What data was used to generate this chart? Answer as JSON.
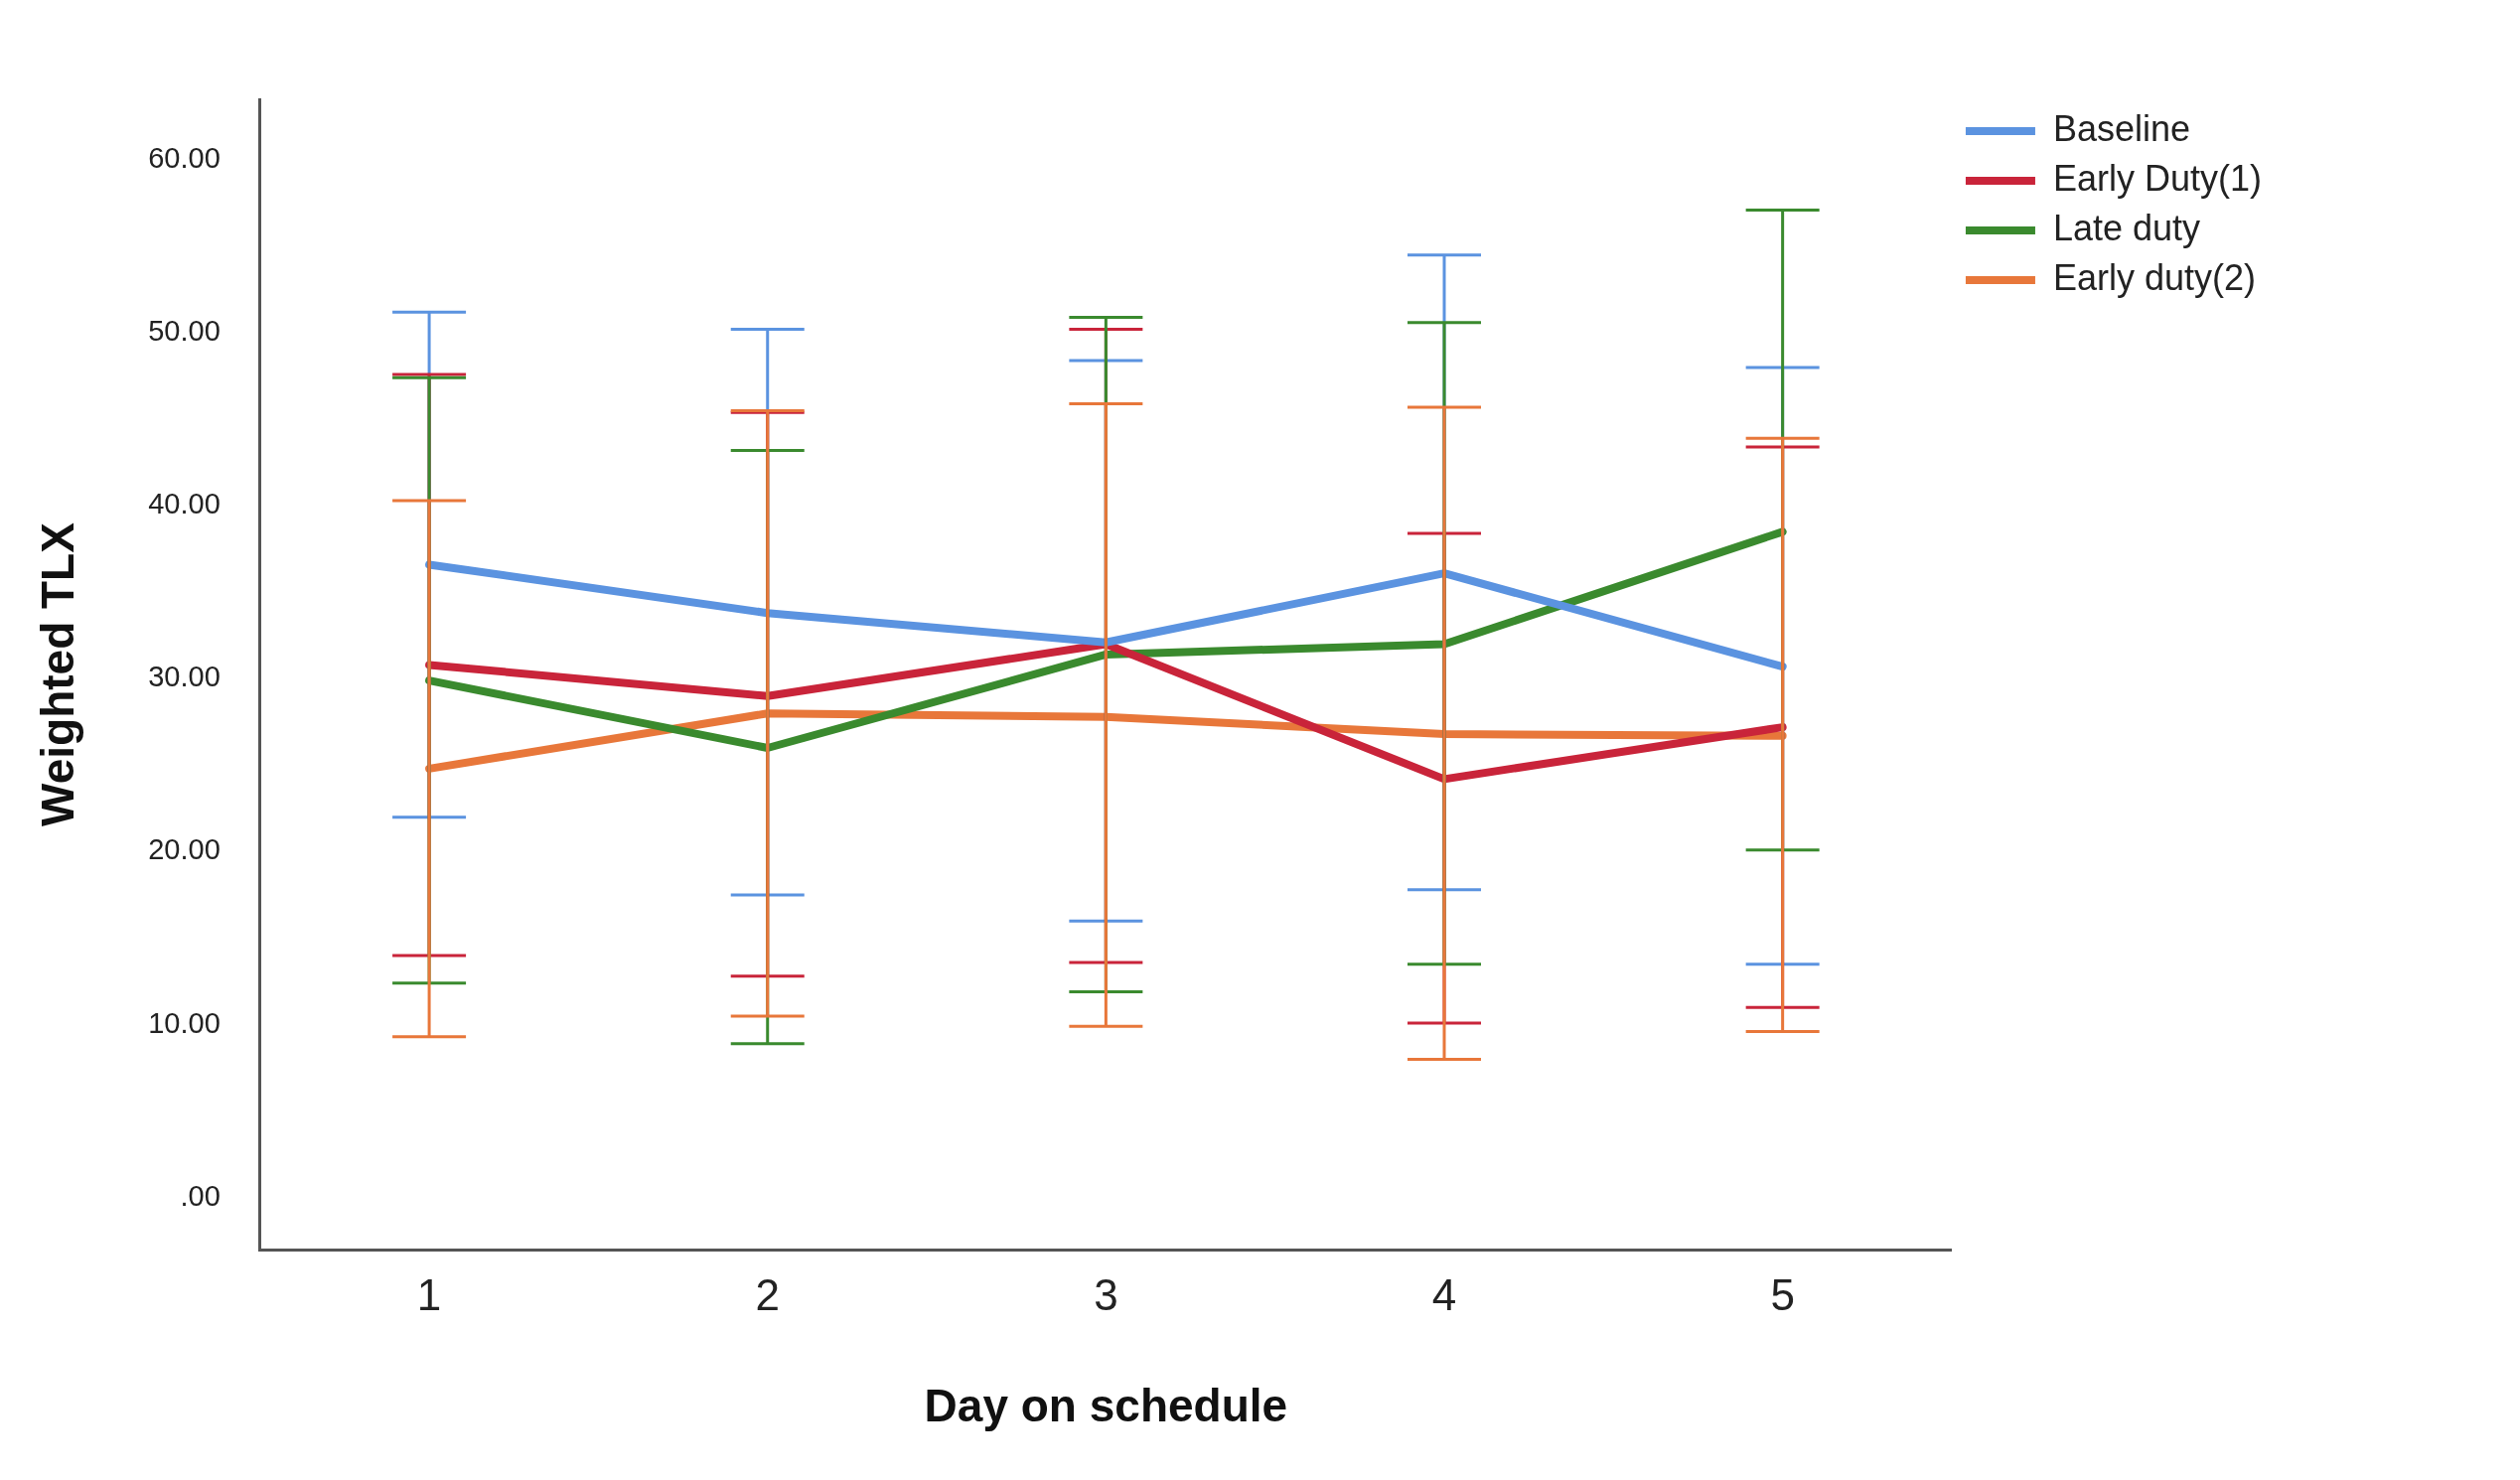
{
  "chart_data": {
    "type": "line",
    "xlabel": "Day on schedule",
    "ylabel": "Weighted TLX",
    "categories": [
      "1",
      "2",
      "3",
      "4",
      "5"
    ],
    "ylim": [
      -3,
      63.5
    ],
    "yticks": [
      {
        "value": 0,
        "label": ".00"
      },
      {
        "value": 10,
        "label": "10.00"
      },
      {
        "value": 20,
        "label": "20.00"
      },
      {
        "value": 30,
        "label": "30.00"
      },
      {
        "value": 40,
        "label": "40.00"
      },
      {
        "value": 50,
        "label": "50.00"
      },
      {
        "value": 60,
        "label": "60.00"
      }
    ],
    "grid": false,
    "legend": "top right",
    "marker": "none",
    "line_style": "solid",
    "series": [
      {
        "name": "Baseline",
        "color": "#5b93e0",
        "values": [
          36.6,
          33.8,
          32.1,
          36.1,
          30.7
        ],
        "errors": [
          [
            22.0,
            51.2
          ],
          [
            17.5,
            50.2
          ],
          [
            16.0,
            48.4
          ],
          [
            17.8,
            54.5
          ],
          [
            13.5,
            48.0
          ]
        ]
      },
      {
        "name": "Early Duty(1)",
        "color": "#c9243a",
        "values": [
          30.8,
          29.0,
          32.0,
          24.2,
          27.2
        ],
        "errors": [
          [
            14.0,
            47.6
          ],
          [
            12.8,
            45.4
          ],
          [
            13.6,
            50.2
          ],
          [
            10.1,
            38.4
          ],
          [
            11.0,
            43.4
          ]
        ]
      },
      {
        "name": "Late duty",
        "color": "#3a8a2e",
        "values": [
          29.9,
          26.0,
          31.4,
          32.0,
          38.5
        ],
        "errors": [
          [
            12.4,
            47.4
          ],
          [
            8.9,
            43.2
          ],
          [
            11.9,
            50.9
          ],
          [
            13.5,
            50.6
          ],
          [
            20.1,
            57.1
          ]
        ]
      },
      {
        "name": "Early duty(2)",
        "color": "#e8773a",
        "values": [
          24.8,
          28.0,
          27.8,
          26.8,
          26.7
        ],
        "errors": [
          [
            9.3,
            40.3
          ],
          [
            10.5,
            45.5
          ],
          [
            9.9,
            45.9
          ],
          [
            8.0,
            45.7
          ],
          [
            9.6,
            43.9
          ]
        ]
      }
    ]
  }
}
